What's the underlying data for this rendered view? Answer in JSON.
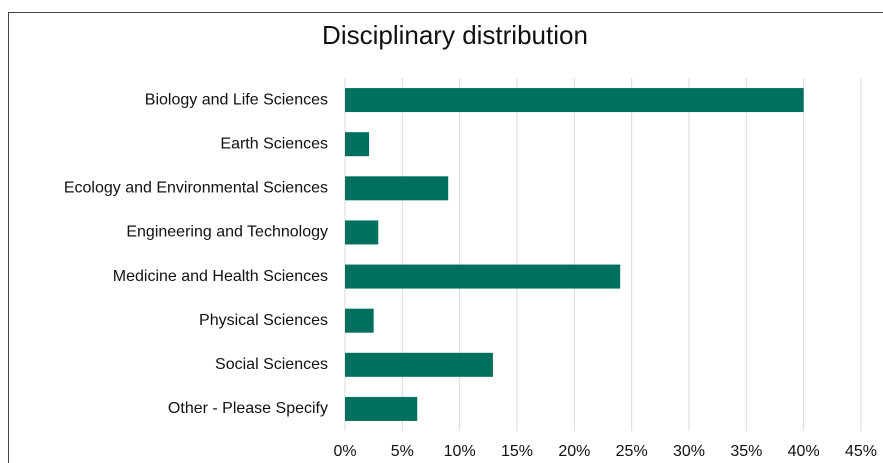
{
  "chart_data": {
    "type": "bar",
    "orientation": "horizontal",
    "title": "Disciplinary distribution",
    "categories": [
      "Biology and Life Sciences",
      "Earth Sciences",
      "Ecology and Environmental Sciences",
      "Engineering and Technology",
      "Medicine and Health Sciences",
      "Physical Sciences",
      "Social Sciences",
      "Other - Please Specify"
    ],
    "values": [
      40,
      2.1,
      9,
      2.9,
      24,
      2.5,
      12.9,
      6.3
    ],
    "color": "#00705e",
    "xlim": [
      0,
      45
    ],
    "xticks": [
      {
        "value": 0,
        "label": "0%"
      },
      {
        "value": 5,
        "label": "5%"
      },
      {
        "value": 10,
        "label": "10%"
      },
      {
        "value": 15,
        "label": "15%"
      },
      {
        "value": 20,
        "label": "20%"
      },
      {
        "value": 25,
        "label": "25%"
      },
      {
        "value": 30,
        "label": "30%"
      },
      {
        "value": 35,
        "label": "35%"
      },
      {
        "value": 40,
        "label": "40%"
      },
      {
        "value": 45,
        "label": "45%"
      }
    ],
    "grid": true
  }
}
